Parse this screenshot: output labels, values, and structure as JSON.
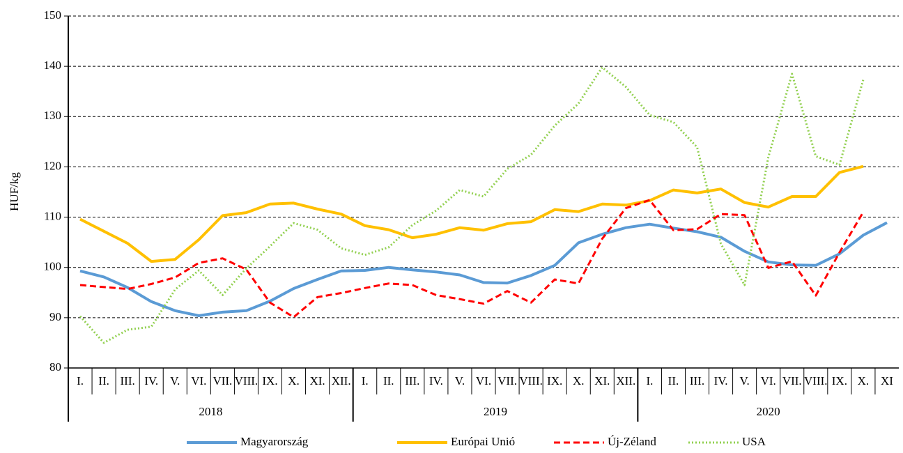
{
  "chart_data": {
    "type": "line",
    "y_label": "HUF/kg",
    "categories": [
      "I.",
      "II.",
      "III.",
      "IV.",
      "V.",
      "VI.",
      "VII.",
      "VIII.",
      "IX.",
      "X.",
      "XI.",
      "XII.",
      "I.",
      "II.",
      "III.",
      "IV.",
      "V.",
      "VI.",
      "VII.",
      "VIII.",
      "IX.",
      "X.",
      "XI.",
      "XII.",
      "I.",
      "II.",
      "III.",
      "IV.",
      "V.",
      "VI.",
      "VII.",
      "VIII.",
      "IX.",
      "X.",
      "XI"
    ],
    "x_groups": [
      "2018",
      "2019",
      "2020"
    ],
    "series": [
      {
        "name": "Magyarország",
        "color": "#5b9bd5",
        "style": "solid",
        "values": [
          99.3,
          98.1,
          96,
          93.2,
          91.4,
          90.4,
          91.1,
          91.4,
          93.3,
          95.8,
          97.6,
          99.3,
          99.4,
          100,
          99.5,
          99.1,
          98.5,
          97,
          96.9,
          98.4,
          100.4,
          104.9,
          106.6,
          107.9,
          108.6,
          107.8,
          107.1,
          106,
          103.2,
          101.1,
          100.5,
          100.4,
          102.7,
          106.4,
          108.9
        ]
      },
      {
        "name": "Európai Unió",
        "color": "#ffc000",
        "style": "solid",
        "values": [
          109.6,
          107.2,
          104.8,
          101.2,
          101.6,
          105.5,
          110.3,
          110.9,
          112.6,
          112.8,
          111.6,
          110.6,
          108.3,
          107.5,
          105.9,
          106.6,
          107.9,
          107.4,
          108.7,
          109.1,
          111.5,
          111.1,
          112.6,
          112.4,
          113.3,
          115.4,
          114.8,
          115.6,
          112.9,
          112,
          114.1,
          114.1,
          118.9,
          120.1,
          null
        ]
      },
      {
        "name": "Új-Zéland",
        "color": "#ff0000",
        "style": "dashed",
        "values": [
          96.5,
          96.1,
          95.7,
          96.7,
          98,
          100.9,
          101.8,
          99.6,
          93,
          90.1,
          94.1,
          94.9,
          95.9,
          96.8,
          96.5,
          94.5,
          93.7,
          92.8,
          95.3,
          93,
          97.6,
          96.8,
          105.7,
          111.8,
          113.4,
          107.4,
          107.6,
          110.6,
          110.4,
          99.9,
          101.2,
          94.4,
          103,
          111,
          null
        ]
      },
      {
        "name": "USA",
        "color": "#92d050",
        "style": "dotted",
        "values": [
          90.3,
          85,
          87.6,
          88.2,
          95.6,
          99.4,
          94.5,
          99.8,
          104.2,
          108.8,
          107.5,
          103.8,
          102.5,
          104,
          108.4,
          111.3,
          115.4,
          114.1,
          119.6,
          122.4,
          128.2,
          132.6,
          139.8,
          135.9,
          130.3,
          128.9,
          123.9,
          104.7,
          96.5,
          121.9,
          138.5,
          122.1,
          120.4,
          137.3,
          null
        ]
      }
    ],
    "ylim": [
      80,
      150
    ],
    "yticks": [
      80,
      90,
      100,
      110,
      120,
      130,
      140,
      150
    ],
    "grid": true,
    "legend": "bottom"
  }
}
